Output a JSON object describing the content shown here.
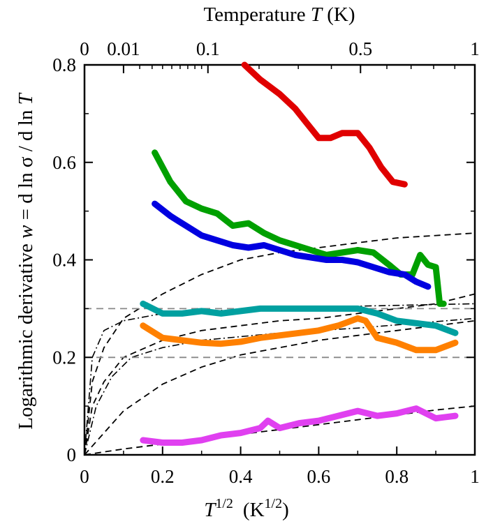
{
  "chart_data": {
    "type": "line",
    "xlabel_prefix": "T",
    "xlabel_sup": "1/2",
    "xlabel_unit": "(K",
    "xlabel_unit_sup": "1/2",
    "xlabel_close": ")",
    "top_label_prefix": "Temperature ",
    "top_label_var": "T",
    "top_label_unit": " (K)",
    "ylabel_prefix": "Logarithmic derivative  ",
    "ylabel_var": "w",
    "ylabel_rest": " = d ln σ  / d ln ",
    "ylabel_var2": "T",
    "xlim": [
      0,
      1
    ],
    "ylim": [
      0,
      0.8
    ],
    "x_ticks": [
      "0",
      "0.2",
      "0.4",
      "0.6",
      "0.8",
      "1"
    ],
    "x_tick_values": [
      0,
      0.2,
      0.4,
      0.6,
      0.8,
      1
    ],
    "y_ticks": [
      "0",
      "0.2",
      "0.4",
      "0.6",
      "0.8"
    ],
    "y_tick_values": [
      0,
      0.2,
      0.4,
      0.6,
      0.8
    ],
    "top_ticks": [
      "0",
      "0.01",
      "0.1",
      "0.5",
      "1"
    ],
    "top_tick_values": [
      0,
      0.01,
      0.1,
      0.5,
      1
    ],
    "series": [
      {
        "color": "#e00000",
        "x": [
          0.41,
          0.45,
          0.5,
          0.54,
          0.57,
          0.6,
          0.63,
          0.66,
          0.7,
          0.73,
          0.76,
          0.79,
          0.82
        ],
        "y": [
          0.8,
          0.77,
          0.74,
          0.71,
          0.68,
          0.65,
          0.65,
          0.66,
          0.66,
          0.63,
          0.59,
          0.56,
          0.555
        ]
      },
      {
        "color": "#00a000",
        "x": [
          0.18,
          0.22,
          0.26,
          0.3,
          0.34,
          0.38,
          0.42,
          0.46,
          0.5,
          0.54,
          0.58,
          0.62,
          0.66,
          0.7,
          0.74,
          0.78,
          0.81,
          0.84,
          0.86,
          0.88,
          0.9,
          0.91,
          0.92
        ],
        "y": [
          0.62,
          0.56,
          0.52,
          0.505,
          0.495,
          0.47,
          0.475,
          0.455,
          0.44,
          0.43,
          0.42,
          0.41,
          0.415,
          0.42,
          0.415,
          0.39,
          0.37,
          0.37,
          0.41,
          0.39,
          0.385,
          0.31,
          0.31
        ]
      },
      {
        "color": "#0000e0",
        "x": [
          0.18,
          0.22,
          0.26,
          0.3,
          0.34,
          0.38,
          0.42,
          0.46,
          0.5,
          0.54,
          0.58,
          0.62,
          0.66,
          0.7,
          0.74,
          0.78,
          0.82,
          0.85,
          0.88
        ],
        "y": [
          0.515,
          0.49,
          0.47,
          0.45,
          0.44,
          0.43,
          0.425,
          0.43,
          0.42,
          0.41,
          0.405,
          0.4,
          0.4,
          0.395,
          0.385,
          0.375,
          0.37,
          0.355,
          0.345
        ]
      },
      {
        "color": "#00a0a0",
        "x": [
          0.15,
          0.2,
          0.25,
          0.3,
          0.35,
          0.4,
          0.45,
          0.5,
          0.55,
          0.6,
          0.65,
          0.7,
          0.75,
          0.8,
          0.85,
          0.9,
          0.95
        ],
        "y": [
          0.31,
          0.29,
          0.29,
          0.295,
          0.29,
          0.295,
          0.3,
          0.3,
          0.3,
          0.3,
          0.3,
          0.3,
          0.29,
          0.275,
          0.27,
          0.265,
          0.25
        ]
      },
      {
        "color": "#ff8000",
        "x": [
          0.15,
          0.2,
          0.25,
          0.3,
          0.35,
          0.4,
          0.45,
          0.5,
          0.55,
          0.6,
          0.65,
          0.7,
          0.72,
          0.75,
          0.8,
          0.85,
          0.9,
          0.95
        ],
        "y": [
          0.265,
          0.24,
          0.235,
          0.23,
          0.228,
          0.232,
          0.24,
          0.245,
          0.25,
          0.255,
          0.265,
          0.28,
          0.275,
          0.24,
          0.23,
          0.215,
          0.215,
          0.23
        ]
      },
      {
        "color": "#e040f0",
        "x": [
          0.15,
          0.2,
          0.25,
          0.3,
          0.35,
          0.4,
          0.45,
          0.47,
          0.5,
          0.55,
          0.6,
          0.65,
          0.7,
          0.75,
          0.8,
          0.85,
          0.9,
          0.95
        ],
        "y": [
          0.03,
          0.025,
          0.025,
          0.03,
          0.04,
          0.045,
          0.055,
          0.07,
          0.055,
          0.065,
          0.07,
          0.08,
          0.09,
          0.08,
          0.085,
          0.095,
          0.075,
          0.08
        ]
      }
    ],
    "guides": [
      {
        "style": "dash",
        "x": [
          0,
          0.02,
          0.05,
          0.1,
          0.2,
          0.3,
          0.4,
          0.5,
          0.6,
          0.7,
          0.8,
          0.9,
          1.0
        ],
        "y": [
          0,
          0.15,
          0.22,
          0.28,
          0.33,
          0.37,
          0.4,
          0.415,
          0.425,
          0.435,
          0.445,
          0.45,
          0.455
        ]
      },
      {
        "style": "dash",
        "x": [
          0,
          0.02,
          0.05,
          0.1,
          0.2,
          0.3,
          0.4,
          0.5,
          0.6,
          0.7,
          0.8,
          0.9,
          1.0
        ],
        "y": [
          0,
          0.1,
          0.15,
          0.2,
          0.235,
          0.255,
          0.265,
          0.275,
          0.28,
          0.29,
          0.3,
          0.31,
          0.33
        ]
      },
      {
        "style": "dash",
        "x": [
          0,
          0.1,
          0.2,
          0.3,
          0.4,
          0.5,
          0.6,
          0.7,
          0.8,
          0.9,
          1.0
        ],
        "y": [
          0,
          0.09,
          0.145,
          0.18,
          0.205,
          0.22,
          0.235,
          0.245,
          0.255,
          0.265,
          0.275
        ]
      },
      {
        "style": "dash",
        "x": [
          0,
          0.1,
          0.2,
          0.3,
          0.4,
          0.5,
          0.6,
          0.7,
          0.8,
          0.9,
          1.0
        ],
        "y": [
          0,
          0.012,
          0.022,
          0.032,
          0.042,
          0.052,
          0.062,
          0.072,
          0.082,
          0.092,
          0.1
        ]
      },
      {
        "style": "dashdot",
        "x": [
          0,
          0.02,
          0.05,
          0.1,
          0.2,
          0.3,
          0.5,
          0.7,
          1.0
        ],
        "y": [
          0,
          0.2,
          0.255,
          0.275,
          0.29,
          0.295,
          0.3,
          0.305,
          0.31
        ]
      },
      {
        "style": "dashdot",
        "x": [
          0,
          0.03,
          0.07,
          0.12,
          0.2,
          0.3,
          0.5,
          0.7,
          1.0
        ],
        "y": [
          0,
          0.1,
          0.16,
          0.2,
          0.22,
          0.235,
          0.25,
          0.26,
          0.28
        ]
      },
      {
        "style": "gray-dash",
        "x": [
          0,
          1
        ],
        "y": [
          0.3,
          0.3
        ]
      },
      {
        "style": "gray-dash",
        "x": [
          0,
          1
        ],
        "y": [
          0.2,
          0.2
        ]
      }
    ]
  }
}
